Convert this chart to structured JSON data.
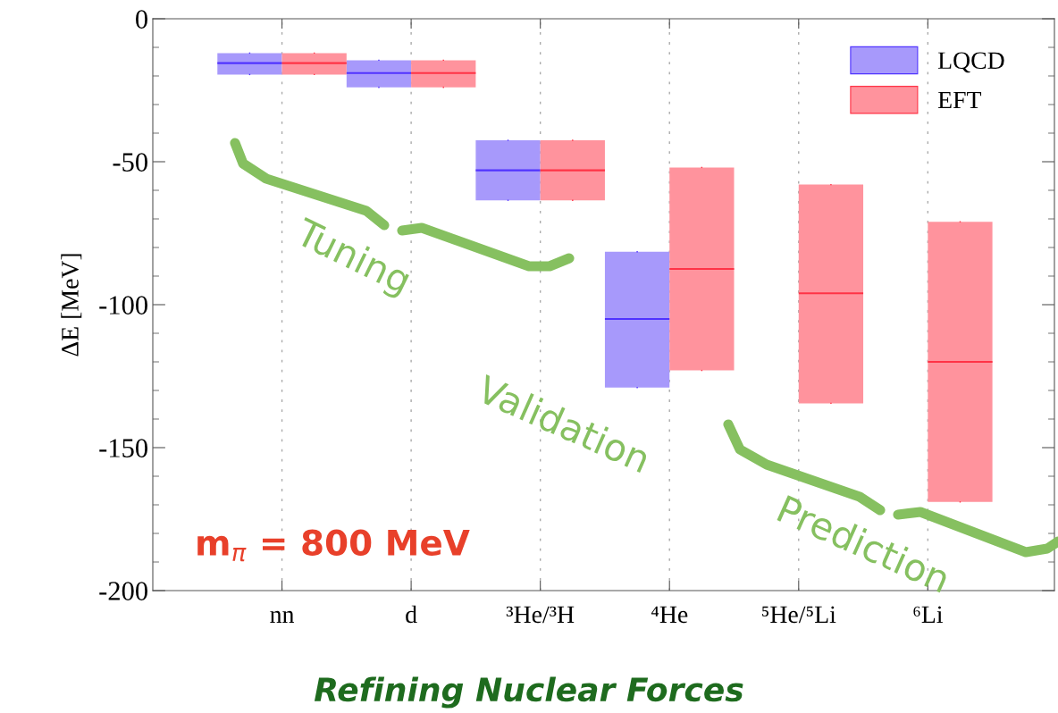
{
  "chart_data": {
    "type": "box",
    "title": "Refining Nuclear Forces",
    "ylabel": "ΔE [MeV]",
    "categories": [
      "nn",
      "d",
      "³He/³H",
      "⁴He",
      "⁵He/⁵Li",
      "⁶Li"
    ],
    "ylim": [
      -200,
      0
    ],
    "yticks": [
      -200,
      -150,
      -100,
      -50,
      0
    ],
    "grid": "x",
    "legend": "top right",
    "annotations": [
      "Tuning",
      "Validation",
      "Prediction",
      "m$_{π}$ = 800 MeV"
    ],
    "series": [
      {
        "name": "LQCD",
        "color": "#a799fb",
        "boxes": [
          {
            "low": -19.5,
            "q1": -19.5,
            "median": -15.5,
            "q3": -12,
            "high": -12
          },
          {
            "low": -24,
            "q1": -24,
            "median": -19,
            "q3": -14.5,
            "high": -14.5
          },
          {
            "low": -63.5,
            "q1": -63.5,
            "median": -53,
            "q3": -42.5,
            "high": -42.5
          },
          {
            "low": -129,
            "q1": -129,
            "median": -105,
            "q3": -81.5,
            "high": -81.5
          },
          null,
          null
        ]
      },
      {
        "name": "EFT",
        "color": "#ff939d",
        "boxes": [
          {
            "low": -19.5,
            "q1": -19.5,
            "median": -15.5,
            "q3": -12,
            "high": -12
          },
          {
            "low": -24,
            "q1": -24,
            "median": -19,
            "q3": -14.5,
            "high": -14.5
          },
          {
            "low": -63.5,
            "q1": -63.5,
            "median": -53,
            "q3": -42.5,
            "high": -42.5
          },
          {
            "low": -123,
            "q1": -123,
            "median": -87.5,
            "q3": -52,
            "high": -52
          },
          {
            "low": -134.5,
            "q1": -134.5,
            "median": -96,
            "q3": -58,
            "high": -58
          },
          {
            "low": -169,
            "q1": -169,
            "median": -120,
            "q3": -71,
            "high": -71
          }
        ]
      }
    ]
  }
}
